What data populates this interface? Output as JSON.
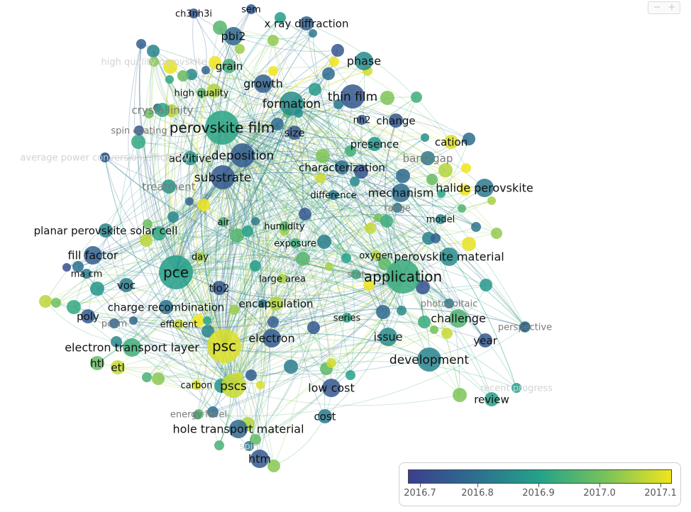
{
  "colorbar": {
    "ticks": [
      "2016.7",
      "2016.8",
      "2016.9",
      "2017.0",
      "2017.1"
    ],
    "colors": [
      "#3b3f8f",
      "#2d6e8e",
      "#24a28a",
      "#78c25a",
      "#f0e51e"
    ]
  },
  "controls": {
    "zoom_out": "−",
    "zoom_in": "+"
  },
  "nodes": [
    {
      "label": "perovskite film",
      "year": 2016.9,
      "weight": 5
    },
    {
      "label": "application",
      "year": 2016.92,
      "weight": 5
    },
    {
      "label": "pce",
      "year": 2016.88,
      "weight": 5
    },
    {
      "label": "psc",
      "year": 2017.1,
      "weight": 5
    },
    {
      "label": "pscs",
      "year": 2017.08,
      "weight": 4
    },
    {
      "label": "thin film",
      "year": 2016.72,
      "weight": 4
    },
    {
      "label": "formation",
      "year": 2016.84,
      "weight": 4
    },
    {
      "label": "deposition",
      "year": 2016.73,
      "weight": 4
    },
    {
      "label": "substrate",
      "year": 2016.72,
      "weight": 4
    },
    {
      "label": "development",
      "year": 2016.82,
      "weight": 4
    },
    {
      "label": "growth",
      "year": 2016.74,
      "weight": 3
    },
    {
      "label": "phase",
      "year": 2016.84,
      "weight": 3
    },
    {
      "label": "pbi2",
      "year": 2016.76,
      "weight": 3
    },
    {
      "label": "halide perovskite",
      "year": 2016.8,
      "weight": 3
    },
    {
      "label": "mechanism",
      "year": 2016.77,
      "weight": 3
    },
    {
      "label": "perovskite material",
      "year": 2016.84,
      "weight": 3
    },
    {
      "label": "electron",
      "year": 2016.73,
      "weight": 3
    },
    {
      "label": "electron transport layer",
      "year": 2016.93,
      "weight": 3
    },
    {
      "label": "hole transport material",
      "year": 2016.76,
      "weight": 3
    },
    {
      "label": "htm",
      "year": 2016.72,
      "weight": 3
    },
    {
      "label": "low cost",
      "year": 2016.72,
      "weight": 3
    },
    {
      "label": "cost",
      "year": 2016.8,
      "weight": 2
    },
    {
      "label": "issue",
      "year": 2016.84,
      "weight": 3
    },
    {
      "label": "challenge",
      "year": 2016.95,
      "weight": 3
    },
    {
      "label": "year",
      "year": 2016.72,
      "weight": 2
    },
    {
      "label": "review",
      "year": 2016.88,
      "weight": 2
    },
    {
      "label": "tio2",
      "year": 2016.72,
      "weight": 2
    },
    {
      "label": "voc",
      "year": 2016.8,
      "weight": 2
    },
    {
      "label": "fill factor",
      "year": 2016.74,
      "weight": 3
    },
    {
      "label": "planar perovskite solar cell",
      "year": 2016.82,
      "weight": 2
    },
    {
      "label": "poly",
      "year": 2016.72,
      "weight": 2
    },
    {
      "label": "charge recombination",
      "year": 2016.78,
      "weight": 2
    },
    {
      "label": "etl",
      "year": 2017.08,
      "weight": 2
    },
    {
      "label": "htl",
      "year": 2016.98,
      "weight": 2
    },
    {
      "label": "encapsulation",
      "year": 2017.06,
      "weight": 2
    },
    {
      "label": "cation",
      "year": 2017.1,
      "weight": 2
    },
    {
      "label": "band gap",
      "year": 2016.8,
      "weight": 2
    },
    {
      "label": "presence",
      "year": 2016.86,
      "weight": 2
    },
    {
      "label": "characterization",
      "year": 2016.78,
      "weight": 2
    },
    {
      "label": "change",
      "year": 2016.72,
      "weight": 2
    },
    {
      "label": "size",
      "year": 2016.72,
      "weight": 2
    },
    {
      "label": "additive",
      "year": 2016.86,
      "weight": 2
    },
    {
      "label": "crystallinity",
      "year": 2016.9,
      "weight": 2
    },
    {
      "label": "grain",
      "year": 2016.93,
      "weight": 2
    },
    {
      "label": "high quality",
      "year": 2016.97,
      "weight": 1
    },
    {
      "label": "x ray diffraction",
      "year": 2016.74,
      "weight": 2
    },
    {
      "label": "ch3nh3i",
      "year": 2016.72,
      "weight": 1
    },
    {
      "label": "sem",
      "year": 2016.72,
      "weight": 1
    },
    {
      "label": "nh2",
      "year": 2016.72,
      "weight": 1
    },
    {
      "label": "treatment",
      "year": 2016.86,
      "weight": 2
    },
    {
      "label": "air",
      "year": 2016.94,
      "weight": 1
    },
    {
      "label": "humidity",
      "year": 2016.96,
      "weight": 1
    },
    {
      "label": "exposure",
      "year": 2016.93,
      "weight": 1
    },
    {
      "label": "day",
      "year": 2017.05,
      "weight": 1
    },
    {
      "label": "large area",
      "year": 2017.05,
      "weight": 1
    },
    {
      "label": "difference",
      "year": 2016.8,
      "weight": 1
    },
    {
      "label": "model",
      "year": 2016.82,
      "weight": 1
    },
    {
      "label": "series",
      "year": 2016.9,
      "weight": 1
    },
    {
      "label": "efficient",
      "year": 2017.08,
      "weight": 1
    },
    {
      "label": "carbon",
      "year": 2017.1,
      "weight": 1
    },
    {
      "label": "perspective",
      "year": 2016.72,
      "weight": 1
    },
    {
      "label": "photovoltaic",
      "year": 2016.8,
      "weight": 1
    },
    {
      "label": "stat",
      "year": 2016.92,
      "weight": 1
    },
    {
      "label": "oxygen",
      "year": 2017.06,
      "weight": 1
    },
    {
      "label": "range",
      "year": 2016.8,
      "weight": 1
    },
    {
      "label": "ma cm",
      "year": 2016.8,
      "weight": 1
    },
    {
      "label": "pcbm",
      "year": 2016.74,
      "weight": 1
    },
    {
      "label": "spin coating",
      "year": 2016.72,
      "weight": 1
    },
    {
      "label": "energy level",
      "year": 2016.96,
      "weight": 1
    },
    {
      "label": "spin",
      "year": 2016.8,
      "weight": 1
    },
    {
      "label": "high quality perovskite",
      "year": 2017.02,
      "weight": 1
    },
    {
      "label": "average power conversion efficiency",
      "year": 2016.72,
      "weight": 1
    },
    {
      "label": "recent progress",
      "year": 2016.88,
      "weight": 1
    }
  ]
}
